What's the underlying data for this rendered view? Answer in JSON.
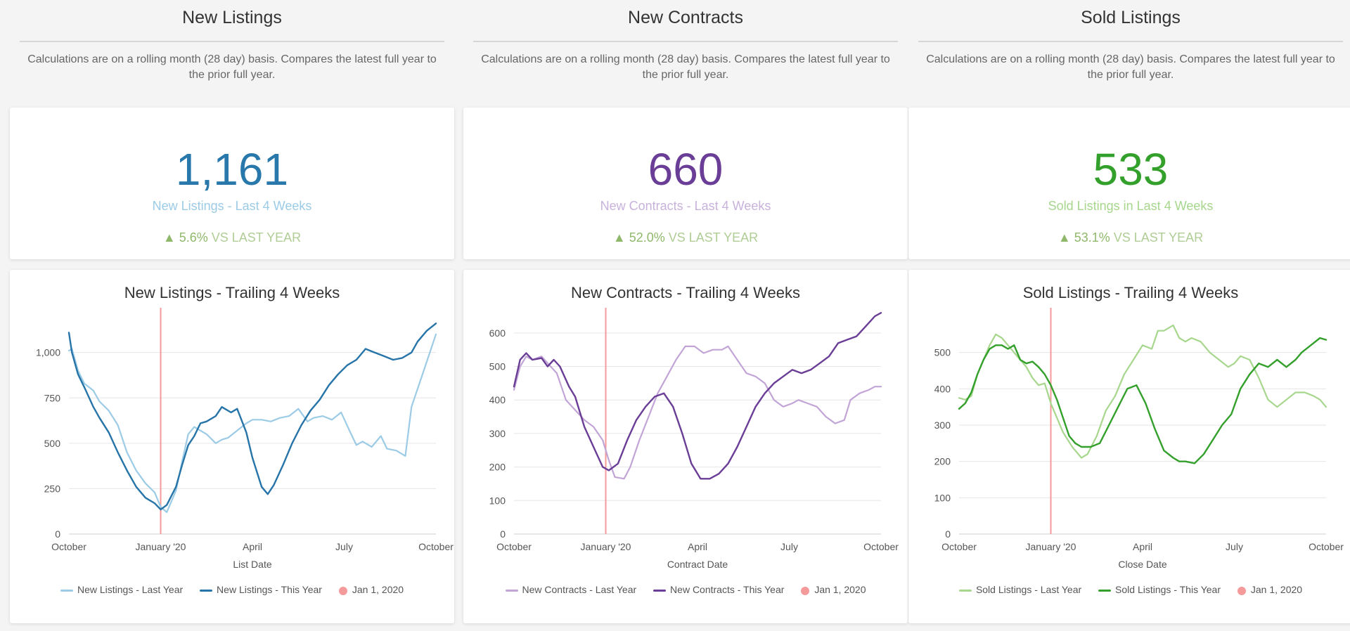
{
  "panels": [
    {
      "section_title": "New Listings",
      "description": "Calculations are on a rolling month (28 day) basis. Compares the latest full year to the prior full year.",
      "kpi": {
        "value": "1,161",
        "label": "New Listings - Last 4 Weeks",
        "arrow": "▲",
        "change": "5.6%",
        "change_suffix": "VS LAST YEAR",
        "value_color": "#2878ab",
        "label_color": "#9ccbe6"
      },
      "chart_data": {
        "type": "line",
        "title": "New Listings - Trailing 4 Weeks",
        "xlabel": "List Date",
        "ylabel": "",
        "xlim": [
          0,
          12
        ],
        "ylim": [
          0,
          1200
        ],
        "yticks": [
          0,
          250,
          500,
          750,
          1000
        ],
        "ytick_labels": [
          "0",
          "250",
          "500",
          "750",
          "1,000"
        ],
        "xticks": [
          0,
          3,
          6,
          9,
          12
        ],
        "xtick_labels": [
          "October",
          "January '20",
          "April",
          "July",
          "October"
        ],
        "marker": {
          "x": 3,
          "label": "Jan 1, 2020",
          "color": "#f49a9a"
        },
        "series": [
          {
            "name": "New Listings - Last Year",
            "color": "#9ccbe6",
            "x": [
              0,
              0.1,
              0.3,
              0.5,
              0.8,
              1.0,
              1.3,
              1.6,
              1.9,
              2.2,
              2.5,
              2.8,
              3.0,
              3.2,
              3.5,
              3.7,
              3.9,
              4.1,
              4.3,
              4.5,
              4.8,
              5.0,
              5.2,
              5.5,
              5.8,
              6.0,
              6.3,
              6.6,
              6.9,
              7.2,
              7.5,
              7.8,
              8.0,
              8.3,
              8.6,
              8.9,
              9.2,
              9.4,
              9.6,
              9.9,
              10.2,
              10.4,
              10.7,
              11.0,
              11.2,
              11.5,
              11.8,
              12.0
            ],
            "values": [
              1010,
              1020,
              900,
              830,
              790,
              730,
              680,
              600,
              450,
              350,
              280,
              230,
              150,
              120,
              240,
              400,
              550,
              590,
              570,
              550,
              500,
              520,
              530,
              570,
              610,
              630,
              630,
              620,
              640,
              650,
              690,
              620,
              640,
              650,
              630,
              670,
              560,
              490,
              510,
              480,
              540,
              470,
              460,
              430,
              700,
              850,
              1000,
              1100
            ]
          },
          {
            "name": "New Listings - This Year",
            "color": "#2674a8",
            "x": [
              0,
              0.1,
              0.3,
              0.5,
              0.8,
              1.0,
              1.3,
              1.6,
              1.9,
              2.2,
              2.5,
              2.8,
              3.0,
              3.2,
              3.5,
              3.7,
              3.9,
              4.1,
              4.3,
              4.5,
              4.8,
              5.0,
              5.3,
              5.5,
              5.8,
              6.0,
              6.3,
              6.5,
              6.7,
              7.0,
              7.3,
              7.6,
              7.9,
              8.2,
              8.5,
              8.8,
              9.1,
              9.4,
              9.7,
              10.0,
              10.3,
              10.6,
              10.9,
              11.2,
              11.4,
              11.7,
              12.0
            ],
            "values": [
              1110,
              1000,
              880,
              810,
              700,
              640,
              560,
              450,
              350,
              260,
              200,
              170,
              135,
              160,
              260,
              380,
              490,
              540,
              610,
              620,
              650,
              700,
              670,
              690,
              560,
              420,
              260,
              220,
              270,
              380,
              500,
              600,
              680,
              740,
              820,
              880,
              930,
              960,
              1020,
              1000,
              980,
              960,
              970,
              1000,
              1060,
              1120,
              1160
            ]
          }
        ]
      }
    },
    {
      "section_title": "New Contracts",
      "description": "Calculations are on a rolling month (28 day) basis. Compares the latest full year to the prior full year.",
      "kpi": {
        "value": "660",
        "label": "New Contracts - Last 4 Weeks",
        "arrow": "▲",
        "change": "52.0%",
        "change_suffix": "VS LAST YEAR",
        "value_color": "#6a3d96",
        "label_color": "#c8b2dc"
      },
      "chart_data": {
        "type": "line",
        "title": "New Contracts - Trailing 4 Weeks",
        "xlabel": "Contract Date",
        "ylabel": "",
        "xlim": [
          0,
          12
        ],
        "ylim": [
          0,
          650
        ],
        "yticks": [
          0,
          100,
          200,
          300,
          400,
          500,
          600
        ],
        "ytick_labels": [
          "0",
          "100",
          "200",
          "300",
          "400",
          "500",
          "600"
        ],
        "xticks": [
          0,
          3,
          6,
          9,
          12
        ],
        "xtick_labels": [
          "October",
          "January '20",
          "April",
          "July",
          "October"
        ],
        "marker": {
          "x": 3,
          "label": "Jan 1, 2020",
          "color": "#f49a9a"
        },
        "series": [
          {
            "name": "New Contracts - Last Year",
            "color": "#c2a5d6",
            "x": [
              0,
              0.2,
              0.4,
              0.6,
              0.9,
              1.1,
              1.4,
              1.7,
              2.0,
              2.3,
              2.6,
              2.9,
              3.1,
              3.3,
              3.6,
              3.8,
              4.1,
              4.4,
              4.7,
              5.0,
              5.3,
              5.6,
              5.9,
              6.2,
              6.5,
              6.8,
              7.0,
              7.3,
              7.6,
              7.9,
              8.2,
              8.5,
              8.8,
              9.1,
              9.3,
              9.6,
              9.9,
              10.2,
              10.5,
              10.8,
              11.0,
              11.3,
              11.6,
              11.8,
              12.0
            ],
            "values": [
              430,
              500,
              530,
              520,
              530,
              510,
              480,
              400,
              370,
              340,
              320,
              280,
              220,
              170,
              165,
              200,
              280,
              350,
              420,
              470,
              520,
              560,
              560,
              540,
              550,
              550,
              560,
              520,
              480,
              470,
              450,
              400,
              380,
              390,
              400,
              390,
              380,
              350,
              330,
              340,
              400,
              420,
              430,
              440,
              440
            ]
          },
          {
            "name": "New Contracts - This Year",
            "color": "#6a3d96",
            "x": [
              0,
              0.2,
              0.4,
              0.6,
              0.9,
              1.1,
              1.3,
              1.5,
              1.8,
              2.0,
              2.3,
              2.6,
              2.9,
              3.1,
              3.4,
              3.7,
              4.0,
              4.3,
              4.6,
              4.9,
              5.2,
              5.5,
              5.8,
              6.1,
              6.4,
              6.7,
              7.0,
              7.3,
              7.6,
              7.9,
              8.2,
              8.5,
              8.8,
              9.1,
              9.4,
              9.7,
              10.0,
              10.3,
              10.6,
              10.9,
              11.2,
              11.5,
              11.8,
              12.0
            ],
            "values": [
              440,
              520,
              540,
              520,
              525,
              500,
              520,
              500,
              440,
              410,
              320,
              260,
              200,
              190,
              210,
              280,
              340,
              380,
              410,
              420,
              380,
              300,
              210,
              165,
              165,
              180,
              210,
              260,
              320,
              380,
              420,
              450,
              470,
              490,
              480,
              490,
              510,
              530,
              570,
              580,
              590,
              620,
              650,
              660
            ]
          }
        ]
      }
    },
    {
      "section_title": "Sold Listings",
      "description": "Calculations are on a rolling month (28 day) basis. Compares the latest full year to the prior full year.",
      "kpi": {
        "value": "533",
        "label": "Sold Listings in Last 4 Weeks",
        "arrow": "▲",
        "change": "53.1%",
        "change_suffix": "VS LAST YEAR",
        "value_color": "#34a02c",
        "label_color": "#a7d68d"
      },
      "chart_data": {
        "type": "line",
        "title": "Sold Listings - Trailing 4 Weeks",
        "xlabel": "Close Date",
        "ylabel": "",
        "xlim": [
          0,
          12
        ],
        "ylim": [
          0,
          600
        ],
        "yticks": [
          0,
          100,
          200,
          300,
          400,
          500
        ],
        "ytick_labels": [
          "0",
          "100",
          "200",
          "300",
          "400",
          "500"
        ],
        "xticks": [
          0,
          3,
          6,
          9,
          12
        ],
        "xtick_labels": [
          "October",
          "January '20",
          "April",
          "July",
          "October"
        ],
        "marker": {
          "x": 3,
          "label": "Jan 1, 2020",
          "color": "#f49a9a"
        },
        "series": [
          {
            "name": "Sold Listings - Last Year",
            "color": "#a7d68d",
            "x": [
              0,
              0.2,
              0.4,
              0.6,
              0.8,
              1.0,
              1.2,
              1.4,
              1.6,
              1.8,
              2.0,
              2.2,
              2.4,
              2.6,
              2.8,
              3.0,
              3.2,
              3.4,
              3.7,
              4.0,
              4.2,
              4.5,
              4.8,
              5.1,
              5.4,
              5.7,
              6.0,
              6.3,
              6.5,
              6.7,
              7.0,
              7.2,
              7.4,
              7.6,
              7.9,
              8.2,
              8.5,
              8.8,
              9.0,
              9.2,
              9.5,
              9.8,
              10.1,
              10.4,
              10.7,
              11.0,
              11.3,
              11.6,
              11.8,
              12.0
            ],
            "values": [
              375,
              370,
              380,
              440,
              480,
              520,
              550,
              540,
              520,
              500,
              480,
              460,
              430,
              410,
              415,
              360,
              320,
              280,
              240,
              210,
              220,
              270,
              340,
              380,
              440,
              480,
              520,
              510,
              560,
              560,
              575,
              540,
              530,
              540,
              530,
              500,
              480,
              460,
              470,
              490,
              480,
              430,
              370,
              350,
              370,
              390,
              390,
              380,
              370,
              350
            ]
          },
          {
            "name": "Sold Listings - This Year",
            "color": "#34a02c",
            "x": [
              0,
              0.2,
              0.4,
              0.6,
              0.8,
              1.0,
              1.2,
              1.4,
              1.6,
              1.8,
              2.0,
              2.2,
              2.4,
              2.6,
              2.8,
              3.0,
              3.2,
              3.4,
              3.6,
              3.8,
              4.0,
              4.3,
              4.6,
              4.9,
              5.2,
              5.5,
              5.8,
              6.1,
              6.4,
              6.7,
              7.0,
              7.2,
              7.4,
              7.7,
              8.0,
              8.3,
              8.6,
              8.9,
              9.2,
              9.5,
              9.8,
              10.1,
              10.4,
              10.7,
              11.0,
              11.2,
              11.5,
              11.8,
              12.0
            ],
            "values": [
              345,
              360,
              390,
              440,
              480,
              510,
              520,
              520,
              510,
              520,
              480,
              470,
              475,
              460,
              440,
              410,
              370,
              320,
              270,
              250,
              240,
              240,
              250,
              300,
              350,
              400,
              410,
              360,
              290,
              230,
              210,
              200,
              200,
              195,
              220,
              260,
              300,
              330,
              400,
              440,
              470,
              460,
              480,
              460,
              480,
              500,
              520,
              540,
              535
            ]
          }
        ]
      }
    }
  ]
}
